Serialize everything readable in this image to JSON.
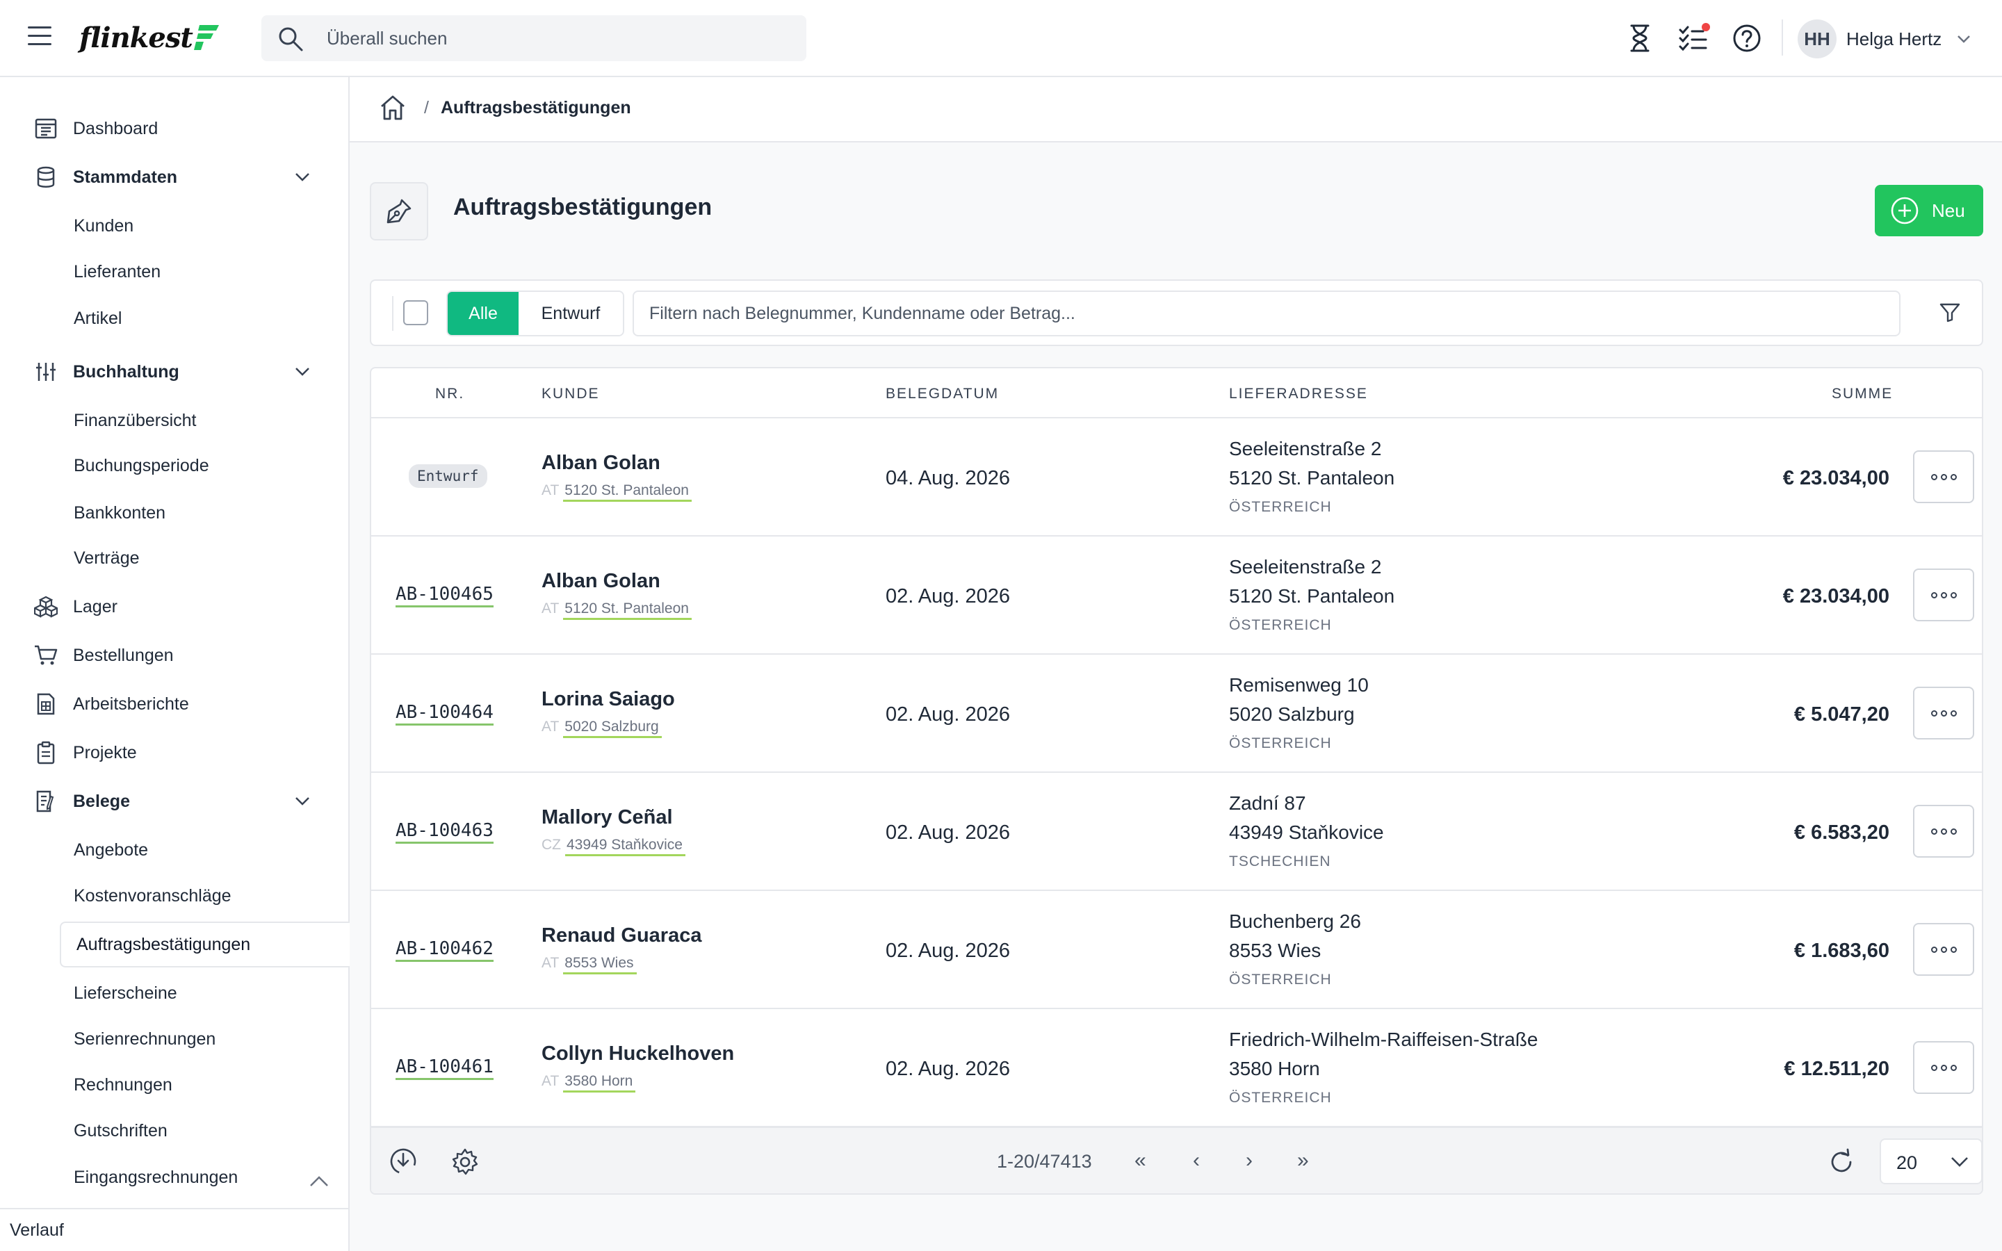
{
  "app": {
    "logo_text": "flinkest",
    "brand_color": "#22c55e"
  },
  "search": {
    "placeholder": "Überall suchen"
  },
  "header": {
    "user_initials": "HH",
    "user_name": "Helga Hertz",
    "notification_color": "#ef4444"
  },
  "sidebar": {
    "items": [
      {
        "label": "Dashboard",
        "icon": "dashboard-icon"
      },
      {
        "label": "Stammdaten",
        "icon": "database-icon",
        "expanded": true
      },
      {
        "label": "Kunden"
      },
      {
        "label": "Lieferanten"
      },
      {
        "label": "Artikel"
      },
      {
        "label": "Buchhaltung",
        "icon": "sliders-icon",
        "expanded": true
      },
      {
        "label": "Finanzübersicht"
      },
      {
        "label": "Buchungsperiode"
      },
      {
        "label": "Bankkonten"
      },
      {
        "label": "Verträge"
      },
      {
        "label": "Lager",
        "icon": "boxes-icon"
      },
      {
        "label": "Bestellungen",
        "icon": "cart-icon"
      },
      {
        "label": "Arbeitsberichte",
        "icon": "report-icon"
      },
      {
        "label": "Projekte",
        "icon": "clipboard-icon"
      },
      {
        "label": "Belege",
        "icon": "document-icon",
        "expanded": true
      },
      {
        "label": "Angebote"
      },
      {
        "label": "Kostenvoranschläge"
      },
      {
        "label": "Auftragsbestätigungen",
        "active": true
      },
      {
        "label": "Lieferscheine"
      },
      {
        "label": "Serienrechnungen"
      },
      {
        "label": "Rechnungen"
      },
      {
        "label": "Gutschriften"
      },
      {
        "label": "Eingangsrechnungen"
      }
    ],
    "footer_label": "Verlauf"
  },
  "breadcrumb": {
    "separator": "/",
    "current": "Auftragsbestätigungen"
  },
  "page": {
    "title": "Auftragsbestätigungen",
    "new_button": "Neu"
  },
  "toolbar": {
    "segments": [
      "Alle",
      "Entwurf"
    ],
    "active_segment": "Alle",
    "filter_placeholder": "Filtern nach Belegnummer, Kundenname oder Betrag..."
  },
  "table": {
    "columns": [
      "NR.",
      "KUNDE",
      "BELEGDATUM",
      "LIEFERADRESSE",
      "SUMME"
    ],
    "rows": [
      {
        "nr": "Entwurf",
        "draft": true,
        "customer": "Alban Golan",
        "cc": "AT",
        "city": "5120 St. Pantaleon",
        "date": "04. Aug. 2026",
        "street": "Seeleitenstraße 2",
        "zip_city": "5120 St. Pantaleon",
        "country": "ÖSTERREICH",
        "sum": "€ 23.034,00"
      },
      {
        "nr": "AB-100465",
        "draft": false,
        "customer": "Alban Golan",
        "cc": "AT",
        "city": "5120 St. Pantaleon",
        "date": "02. Aug. 2026",
        "street": "Seeleitenstraße 2",
        "zip_city": "5120 St. Pantaleon",
        "country": "ÖSTERREICH",
        "sum": "€ 23.034,00"
      },
      {
        "nr": "AB-100464",
        "draft": false,
        "customer": "Lorina Saiago",
        "cc": "AT",
        "city": "5020 Salzburg",
        "date": "02. Aug. 2026",
        "street": "Remisenweg 10",
        "zip_city": "5020 Salzburg",
        "country": "ÖSTERREICH",
        "sum": "€ 5.047,20"
      },
      {
        "nr": "AB-100463",
        "draft": false,
        "customer": "Mallory Ceñal",
        "cc": "CZ",
        "city": "43949 Staňkovice",
        "date": "02. Aug. 2026",
        "street": "Zadní 87",
        "zip_city": "43949 Staňkovice",
        "country": "TSCHECHIEN",
        "sum": "€ 6.583,20"
      },
      {
        "nr": "AB-100462",
        "draft": false,
        "customer": "Renaud Guaraca",
        "cc": "AT",
        "city": "8553 Wies",
        "date": "02. Aug. 2026",
        "street": "Buchenberg 26",
        "zip_city": "8553 Wies",
        "country": "ÖSTERREICH",
        "sum": "€ 1.683,60"
      },
      {
        "nr": "AB-100461",
        "draft": false,
        "customer": "Collyn Huckelhoven",
        "cc": "AT",
        "city": "3580 Horn",
        "date": "02. Aug. 2026",
        "street": "Friedrich-Wilhelm-Raiffeisen-Straße",
        "zip_city": "3580 Horn",
        "country": "ÖSTERREICH",
        "sum": "€ 12.511,20"
      }
    ]
  },
  "pagination": {
    "range": "1-20/47413",
    "first": "«",
    "prev": "‹",
    "next": "›",
    "last": "»",
    "per_page": "20"
  }
}
